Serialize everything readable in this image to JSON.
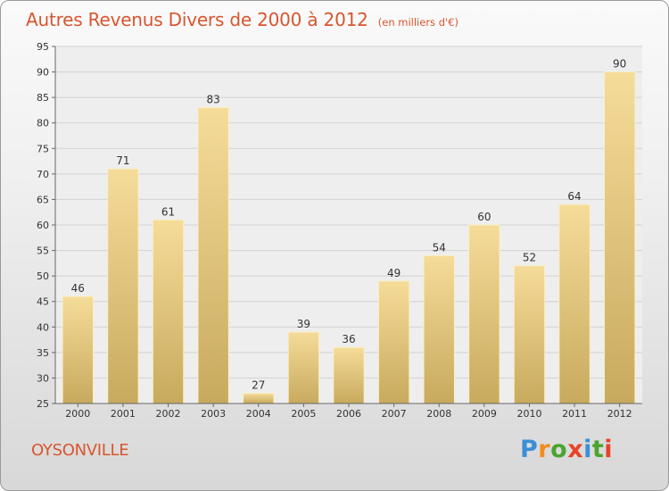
{
  "title": "Autres Revenus Divers de 2000 à 2012",
  "unit_note": "(en milliers d'€)",
  "town": "OYSONVILLE",
  "logo": {
    "letters": [
      "P",
      "r",
      "o",
      "x",
      "i",
      "t",
      "i"
    ],
    "colors": [
      "#3a8fd6",
      "#f28c1e",
      "#4aa52e",
      "#e8432a",
      "#3a8fd6",
      "#4aa52e",
      "#e8432a"
    ]
  },
  "colors": {
    "bar_top": "#f5dc99",
    "bar_bottom": "#c8aa5e",
    "title": "#d9552f"
  },
  "chart_data": {
    "type": "bar",
    "categories": [
      "2000",
      "2001",
      "2002",
      "2003",
      "2004",
      "2005",
      "2006",
      "2007",
      "2008",
      "2009",
      "2010",
      "2011",
      "2012"
    ],
    "values": [
      46,
      71,
      61,
      83,
      27,
      39,
      36,
      49,
      54,
      60,
      52,
      64,
      90
    ],
    "ylim": [
      25,
      95
    ],
    "yticks": [
      25,
      30,
      35,
      40,
      45,
      50,
      55,
      60,
      65,
      70,
      75,
      80,
      85,
      90,
      95
    ],
    "grid": true
  }
}
